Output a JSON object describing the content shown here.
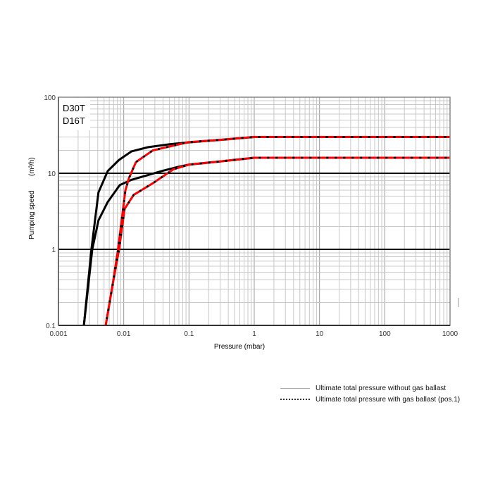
{
  "chart_data": {
    "type": "line",
    "xlabel": "Pressure (mbar)",
    "ylabel": "Pumping speed",
    "ylabel_unit": "(m³/h)",
    "xscale": "log",
    "yscale": "log",
    "xlim": [
      0.001,
      1000
    ],
    "ylim": [
      0.1,
      100
    ],
    "xticks": [
      "0.001",
      "0.01",
      "0.1",
      "1",
      "10",
      "100",
      "1000"
    ],
    "yticks": [
      "0.1",
      "1",
      "10",
      "100"
    ],
    "grid": true,
    "annotations": [
      "D30T",
      "D16T"
    ],
    "series": [
      {
        "name": "D30T",
        "style": "solid",
        "color": "#000000",
        "x": [
          0.00245,
          0.0032,
          0.0041,
          0.0057,
          0.0085,
          0.0132,
          0.0235,
          0.05,
          0.1,
          0.3,
          1,
          10,
          100,
          1000
        ],
        "y": [
          0.1,
          1,
          5.6,
          10.7,
          15,
          19.4,
          22,
          24,
          25.5,
          27.5,
          30,
          30,
          30,
          30
        ]
      },
      {
        "name": "D16T",
        "style": "solid",
        "color": "#000000",
        "x": [
          0.00245,
          0.0033,
          0.0041,
          0.0057,
          0.0087,
          0.0132,
          0.0385,
          0.065,
          0.1,
          0.3,
          1,
          10,
          100,
          1000
        ],
        "y": [
          0.1,
          1,
          2.4,
          4.2,
          7.0,
          8.2,
          10.7,
          12,
          13,
          14.3,
          16,
          16,
          16,
          16
        ]
      },
      {
        "name": "D30T",
        "style": "dashed",
        "color": "#ff0000",
        "x": [
          0.0053,
          0.0068,
          0.0081,
          0.0106,
          0.012,
          0.0154,
          0.028,
          0.097,
          0.3,
          1,
          10,
          100,
          1000
        ],
        "y": [
          0.1,
          0.35,
          0.94,
          5.9,
          8.6,
          14,
          20,
          25.6,
          27.5,
          30,
          30,
          30,
          30
        ]
      },
      {
        "name": "D16T",
        "style": "dashed",
        "color": "#ff0000",
        "x": [
          0.0053,
          0.0068,
          0.0085,
          0.0103,
          0.0142,
          0.028,
          0.058,
          0.1,
          0.3,
          1,
          10,
          100,
          1000
        ],
        "y": [
          0.1,
          0.35,
          1,
          3.4,
          5.2,
          7.4,
          11.3,
          13,
          14.3,
          16,
          16,
          16,
          16
        ]
      }
    ],
    "legend": {
      "placement": "bottom-right",
      "entries": [
        {
          "label": "Ultimate total pressure without gas ballast",
          "style": "solid"
        },
        {
          "label": "Ultimate total pressure with gas ballast (pos.1)",
          "style": "dashed"
        }
      ]
    }
  }
}
